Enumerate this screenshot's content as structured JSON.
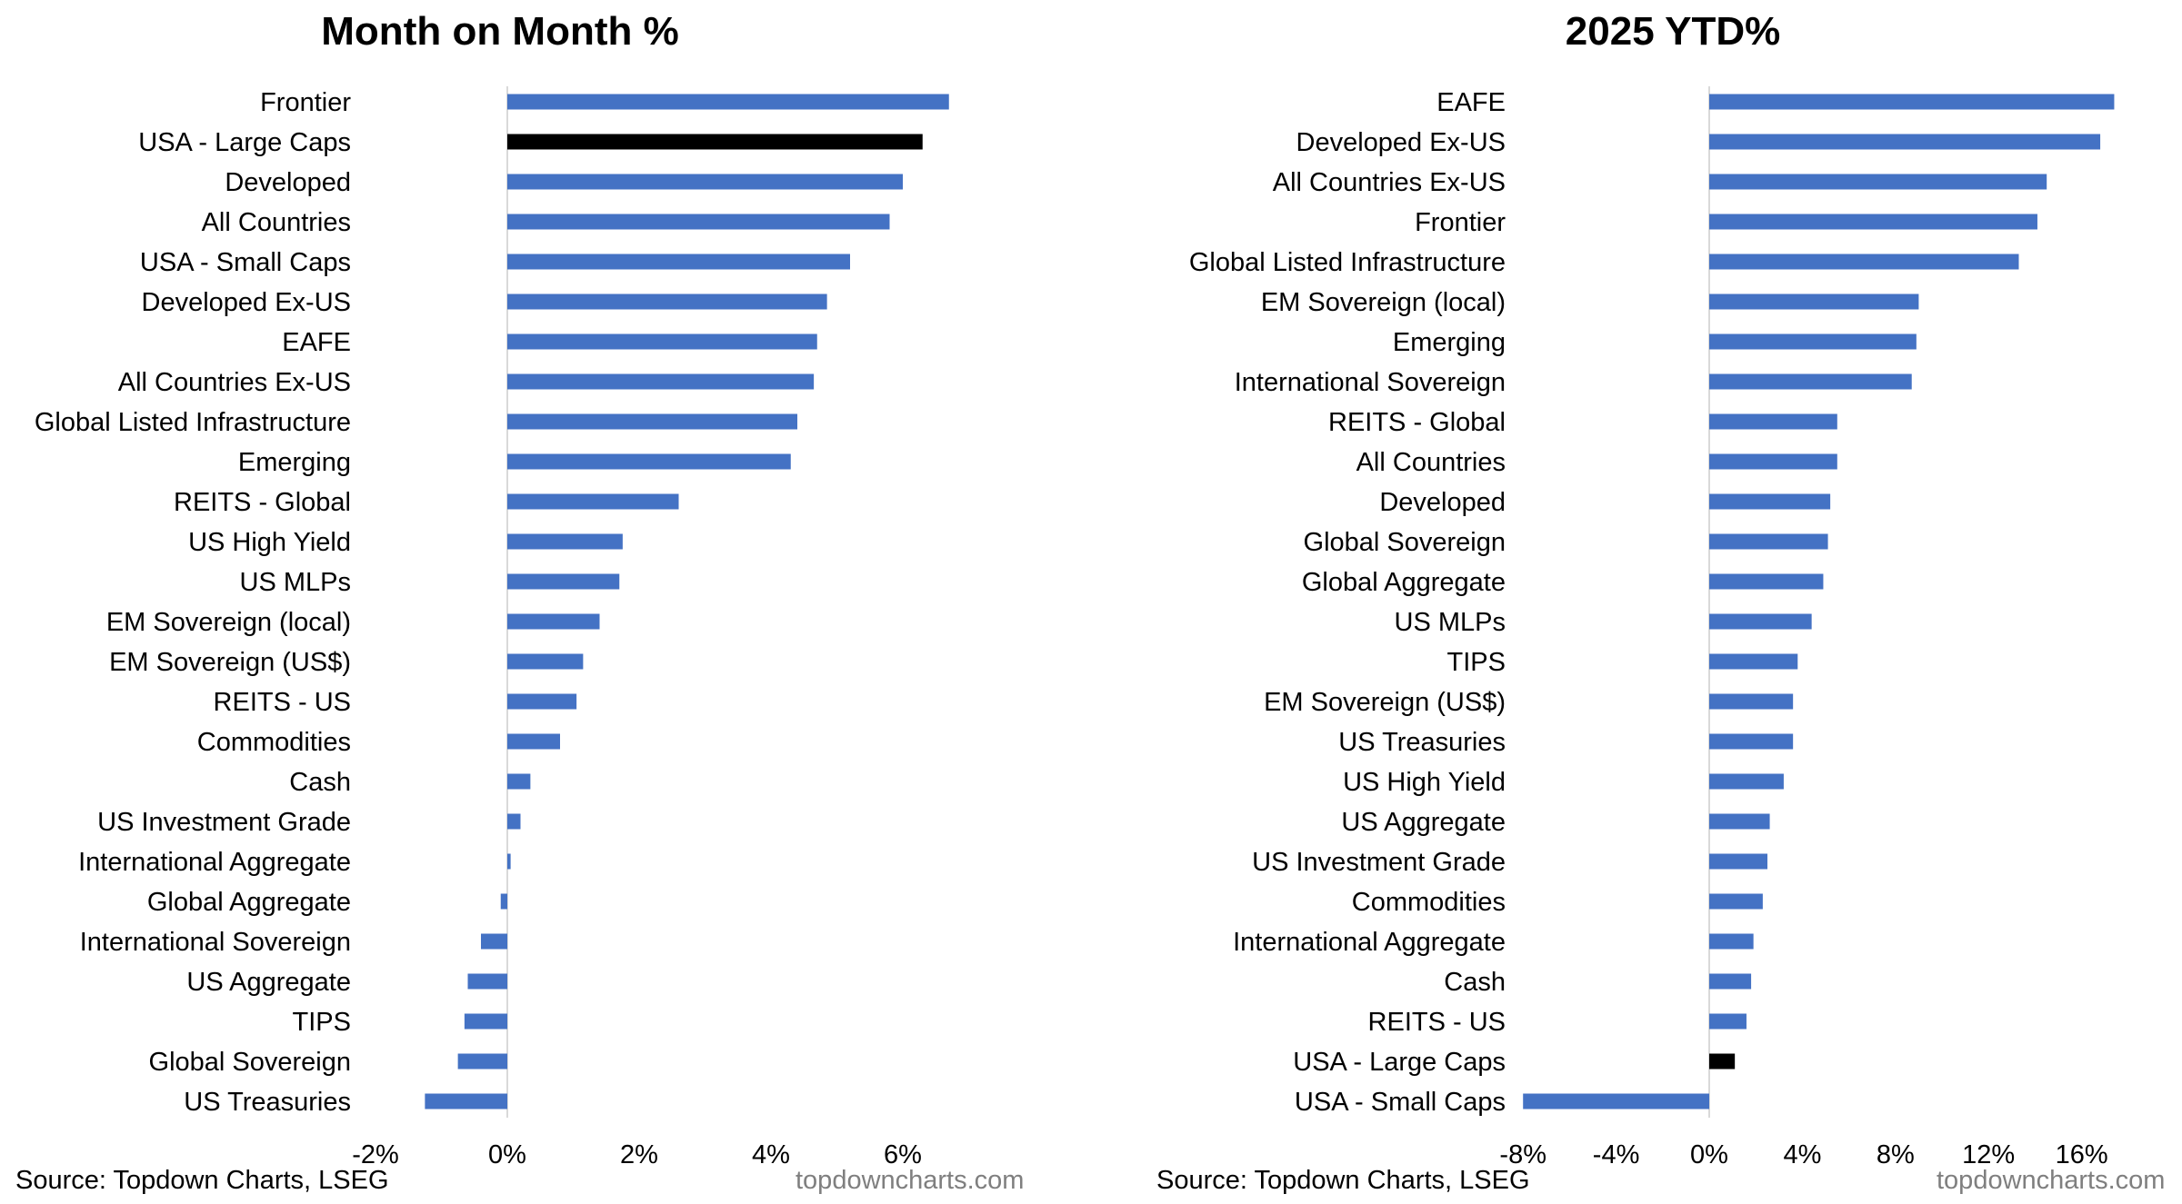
{
  "colors": {
    "bar": "#4472C4",
    "highlight": "#000000",
    "axis": "#D9D9D9"
  },
  "footer": {
    "left_source": "Source: Topdown Charts, LSEG",
    "left_brand": "topdowncharts.com",
    "right_source": "Source: Topdown Charts, LSEG",
    "right_brand": "topdowncharts.com"
  },
  "chart_data": [
    {
      "type": "bar",
      "orientation": "horizontal",
      "title": "Month on Month %",
      "highlight": "USA - Large Caps",
      "xlim": [
        -2,
        8
      ],
      "xticks": [
        -2,
        0,
        2,
        4,
        6
      ],
      "xtick_labels": [
        "-2%",
        "0%",
        "2%",
        "4%",
        "6%"
      ],
      "grid": false,
      "categories": [
        "Frontier",
        "USA - Large Caps",
        "Developed",
        "All Countries",
        "USA - Small Caps",
        "Developed Ex-US",
        "EAFE",
        "All Countries Ex-US",
        "Global Listed Infrastructure",
        "Emerging",
        "REITS - Global",
        "US High Yield",
        "US MLPs",
        "EM Sovereign (local)",
        "EM Sovereign (US$)",
        "REITS - US",
        "Commodities",
        "Cash",
        "US Investment Grade",
        "International Aggregate",
        "Global Aggregate",
        "International Sovereign",
        "US Aggregate",
        "TIPS",
        "Global Sovereign",
        "US Treasuries"
      ],
      "values": [
        6.7,
        6.3,
        6.0,
        5.8,
        5.2,
        4.85,
        4.7,
        4.65,
        4.4,
        4.3,
        2.6,
        1.75,
        1.7,
        1.4,
        1.15,
        1.05,
        0.8,
        0.35,
        0.2,
        0.05,
        -0.1,
        -0.4,
        -0.6,
        -0.65,
        -0.75,
        -1.25
      ]
    },
    {
      "type": "bar",
      "orientation": "horizontal",
      "title": "2025 YTD%",
      "highlight": "USA - Large Caps",
      "xlim": [
        -8,
        18
      ],
      "xticks": [
        -8,
        -4,
        0,
        4,
        8,
        12,
        16
      ],
      "xtick_labels": [
        "-8%",
        "-4%",
        "0%",
        "4%",
        "8%",
        "12%",
        "16%"
      ],
      "grid": false,
      "categories": [
        "EAFE",
        "Developed Ex-US",
        "All Countries Ex-US",
        "Frontier",
        "Global Listed Infrastructure",
        "EM Sovereign (local)",
        "Emerging",
        "International Sovereign",
        "REITS - Global",
        "All Countries",
        "Developed",
        "Global Sovereign",
        "Global Aggregate",
        "US MLPs",
        "TIPS",
        "EM Sovereign (US$)",
        "US Treasuries",
        "US High Yield",
        "US Aggregate",
        "US Investment Grade",
        "Commodities",
        "International Aggregate",
        "Cash",
        "REITS - US",
        "USA - Large Caps",
        "USA - Small Caps"
      ],
      "values": [
        17.4,
        16.8,
        14.5,
        14.1,
        13.3,
        9.0,
        8.9,
        8.7,
        5.5,
        5.5,
        5.2,
        5.1,
        4.9,
        4.4,
        3.8,
        3.6,
        3.6,
        3.2,
        2.6,
        2.5,
        2.3,
        1.9,
        1.8,
        1.6,
        1.1,
        -8.0
      ]
    }
  ]
}
